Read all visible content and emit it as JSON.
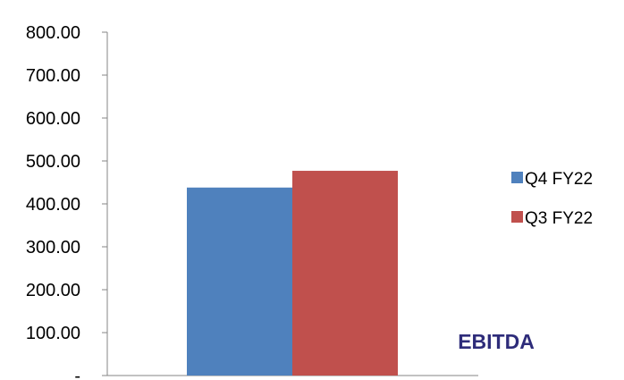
{
  "chart_data": {
    "type": "bar",
    "categories": [
      "EBITDA"
    ],
    "series": [
      {
        "name": "Q4 FY22",
        "values": [
          438
        ],
        "color": "#4F81BD"
      },
      {
        "name": "Q3 FY22",
        "values": [
          477
        ],
        "color": "#C0504D"
      }
    ],
    "ylim": [
      0,
      800
    ],
    "yticks": [
      "-",
      "100.00",
      "200.00",
      "300.00",
      "400.00",
      "500.00",
      "600.00",
      "700.00",
      "800.00"
    ],
    "grid": false,
    "legend_position": "right",
    "category_label_color": "#2E2C7A"
  }
}
